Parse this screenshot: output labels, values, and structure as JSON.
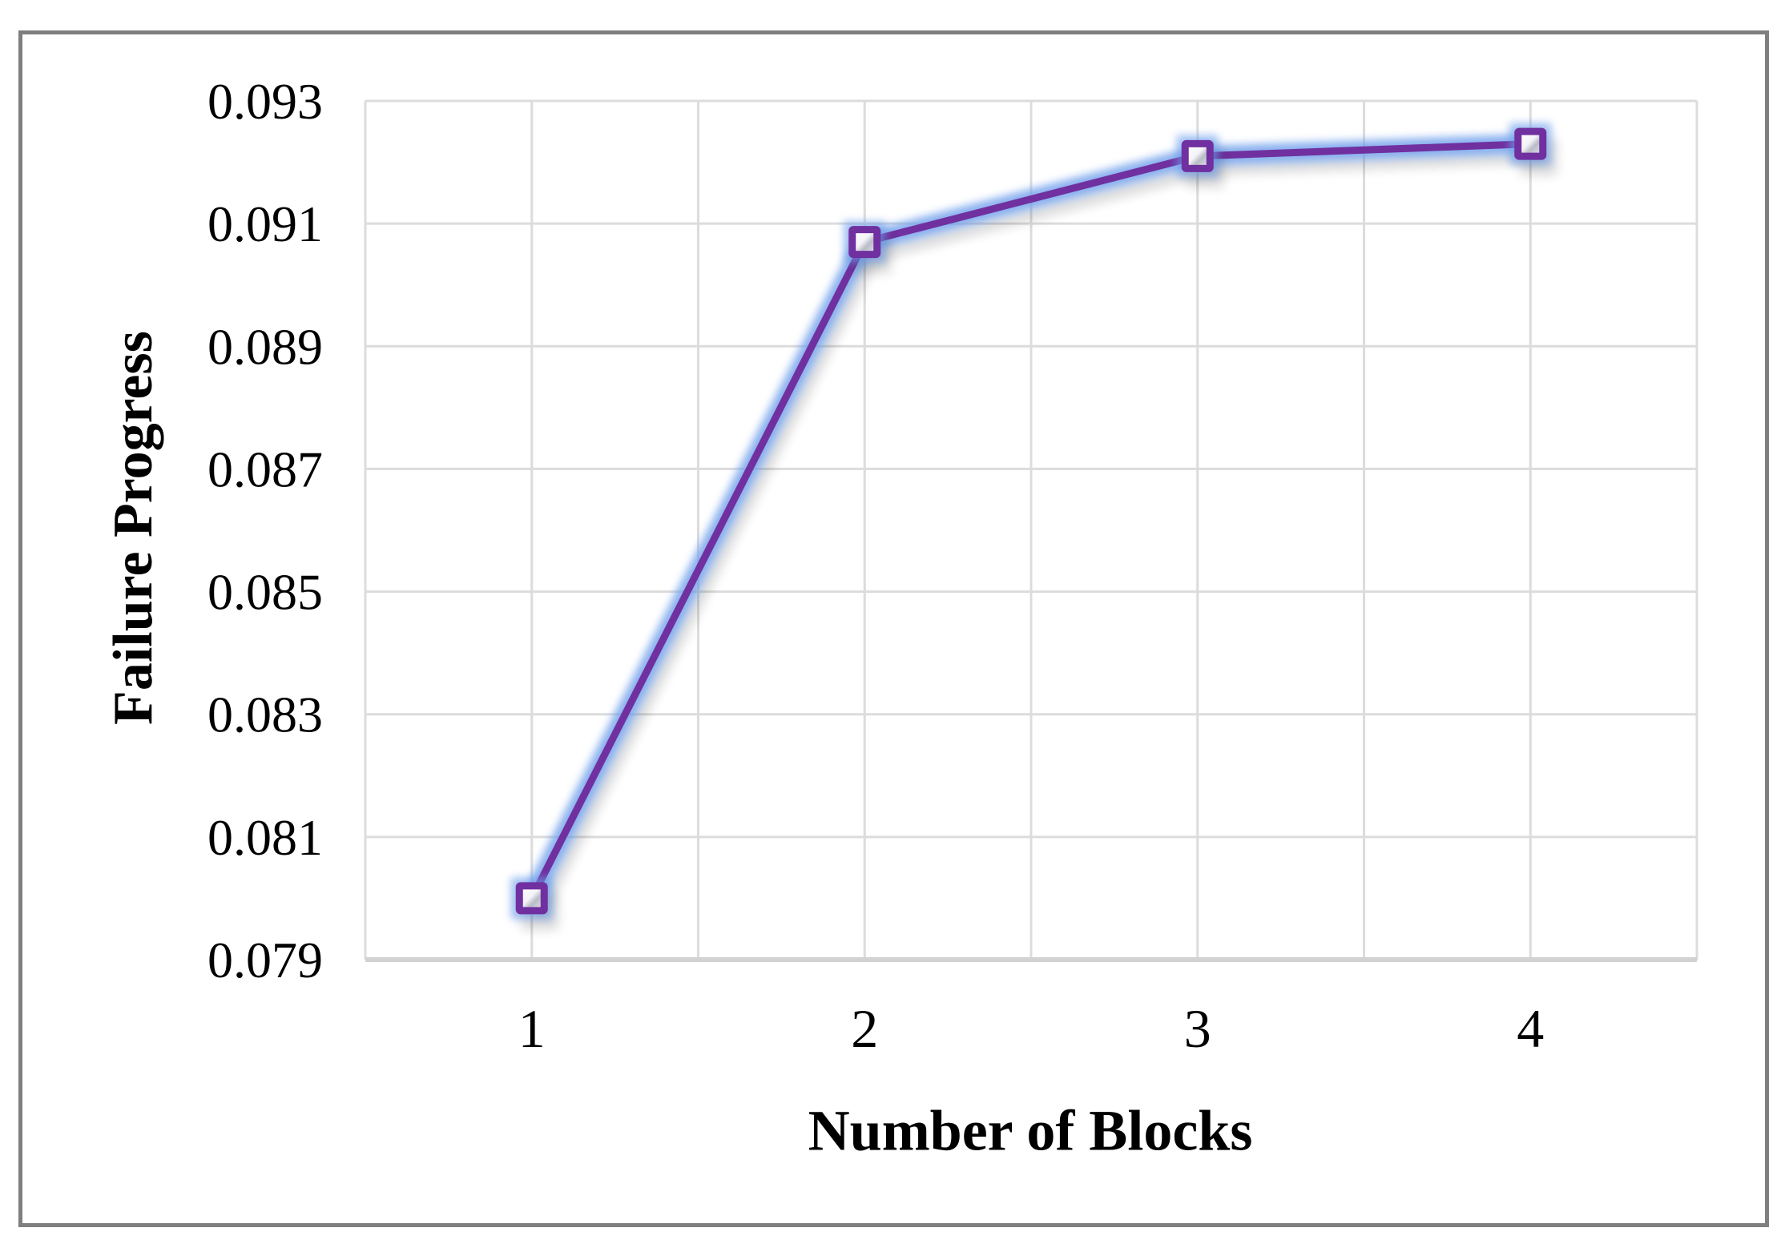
{
  "figure": {
    "background": "#FFFFFF",
    "border_color": "#7F7F7F",
    "border_width": 5
  },
  "chart_data": {
    "type": "line",
    "title": "",
    "xlabel": "Number of Blocks",
    "ylabel": "Failure Progress",
    "categories": [
      "1",
      "2",
      "3",
      "4"
    ],
    "series": [
      {
        "name": "Failure Progress",
        "values": [
          0.08,
          0.0907,
          0.0921,
          0.0923
        ],
        "line_color": "#7030A0",
        "glow_color": "#6D9EEB",
        "shadow_color": "#000000",
        "marker": "square-outlined",
        "marker_fill": "#FFFFFF"
      }
    ],
    "ylim": [
      0.079,
      0.093
    ],
    "ytick_step": 0.002,
    "yticks": [
      "0.093",
      "0.091",
      "0.089",
      "0.087",
      "0.085",
      "0.083",
      "0.081",
      "0.079"
    ],
    "xticks": [
      "1",
      "2",
      "3",
      "4"
    ],
    "grid": {
      "show": true,
      "gridline_color": "#DCDCDC",
      "axis_line_color": "#D2D2D2"
    },
    "legend_position": "none",
    "tick_color": "#000000"
  }
}
